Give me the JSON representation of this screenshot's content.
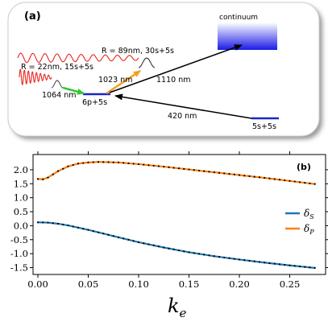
{
  "panel_a": {
    "tag": "(a)",
    "continuum": "continuum",
    "r_large": "R = 89nm, 30s+5s",
    "r_small": "R = 22nm, 15s+5s",
    "wl_1023": "1023 nm",
    "wl_1110": "1110 nm",
    "wl_1064": "1064 nm",
    "wl_420": "420 nm",
    "state_6p": "6p+5s",
    "state_5s": "5s+5s",
    "colors": {
      "box": "#ffffff",
      "wave": "#e8261f",
      "level": "#1c24c8",
      "green": "#32c832",
      "orange": "#f0a020"
    }
  },
  "panel_b": {
    "tag": "(b)",
    "xlabel_main": "k",
    "xlabel_sub": "e",
    "chart_data": {
      "type": "line",
      "xlim": [
        0.0,
        0.28
      ],
      "ylim": [
        -1.6,
        2.4
      ],
      "x_ticks": [
        "0.00",
        "0.05",
        "0.10",
        "0.15",
        "0.20",
        "0.25"
      ],
      "y_ticks": [
        "2.0",
        "1.5",
        "1.0",
        "0.5",
        "0.0",
        "-0.5",
        "-1.0",
        "-1.5"
      ],
      "legend": {
        "placement": "right",
        "s_main": "δ",
        "s_sub": "S",
        "p_main": "δ",
        "p_sub": "P"
      },
      "series": [
        {
          "color": "#1f77b4",
          "x": [
            0.0,
            0.01,
            0.02,
            0.03,
            0.05,
            0.075,
            0.1,
            0.125,
            0.15,
            0.175,
            0.2,
            0.225,
            0.25,
            0.275
          ],
          "y": [
            0.12,
            0.11,
            0.07,
            0.01,
            -0.15,
            -0.37,
            -0.59,
            -0.78,
            -0.95,
            -1.09,
            -1.21,
            -1.32,
            -1.42,
            -1.51
          ]
        },
        {
          "color": "#ff7f0e",
          "x": [
            0.0,
            0.005,
            0.01,
            0.02,
            0.03,
            0.04,
            0.05,
            0.06,
            0.07,
            0.08,
            0.1,
            0.125,
            0.15,
            0.175,
            0.2,
            0.225,
            0.25,
            0.275
          ],
          "y": [
            1.67,
            1.66,
            1.72,
            1.95,
            2.12,
            2.22,
            2.26,
            2.28,
            2.27,
            2.26,
            2.2,
            2.11,
            2.01,
            1.91,
            1.81,
            1.71,
            1.6,
            1.49
          ]
        }
      ]
    }
  }
}
